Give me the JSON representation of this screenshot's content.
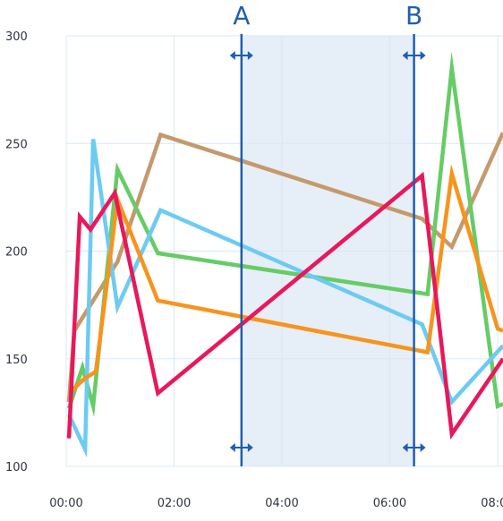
{
  "chart_data": {
    "type": "line",
    "xlim": [
      0,
      8.1
    ],
    "ylim": [
      100,
      300
    ],
    "x_ticks": [
      {
        "value": 0,
        "label": "00:00"
      },
      {
        "value": 2,
        "label": "02:00"
      },
      {
        "value": 4,
        "label": "04:00"
      },
      {
        "value": 6,
        "label": "06:00"
      },
      {
        "value": 8,
        "label": "08:00"
      }
    ],
    "y_ticks": [
      {
        "value": 100,
        "label": "100"
      },
      {
        "value": 150,
        "label": "150"
      },
      {
        "value": 200,
        "label": "200"
      },
      {
        "value": 250,
        "label": "250"
      },
      {
        "value": 300,
        "label": "300"
      }
    ],
    "grid": true,
    "cursors": [
      {
        "label": "A",
        "x": 3.25
      },
      {
        "label": "B",
        "x": 6.45
      }
    ],
    "selection_range": [
      3.25,
      6.45
    ],
    "series": [
      {
        "color": "#c49a6c",
        "points": [
          [
            0.05,
            130
          ],
          [
            0.15,
            163
          ],
          [
            0.95,
            195
          ],
          [
            1.75,
            254
          ],
          [
            6.6,
            215
          ],
          [
            7.15,
            202
          ],
          [
            8.1,
            255
          ]
        ]
      },
      {
        "color": "#66cc66",
        "points": [
          [
            0.05,
            127
          ],
          [
            0.3,
            146
          ],
          [
            0.5,
            128
          ],
          [
            0.95,
            238
          ],
          [
            1.7,
            199
          ],
          [
            6.7,
            180
          ],
          [
            7.15,
            285
          ],
          [
            8.0,
            128
          ],
          [
            8.1,
            129
          ]
        ]
      },
      {
        "color": "#6ccbf2",
        "points": [
          [
            0.05,
            124
          ],
          [
            0.35,
            108
          ],
          [
            0.5,
            252
          ],
          [
            0.95,
            174
          ],
          [
            1.75,
            219
          ],
          [
            6.6,
            166
          ],
          [
            7.15,
            130
          ],
          [
            8.1,
            156
          ]
        ]
      },
      {
        "color": "#f7941d",
        "points": [
          [
            0.05,
            134
          ],
          [
            0.35,
            141
          ],
          [
            0.55,
            144
          ],
          [
            0.95,
            224
          ],
          [
            1.7,
            177
          ],
          [
            6.7,
            153
          ],
          [
            7.15,
            236
          ],
          [
            8.0,
            164
          ],
          [
            8.1,
            163
          ]
        ]
      },
      {
        "color": "#e8185a",
        "points": [
          [
            0.05,
            113
          ],
          [
            0.25,
            216
          ],
          [
            0.45,
            210
          ],
          [
            0.9,
            227
          ],
          [
            1.7,
            134
          ],
          [
            6.6,
            235
          ],
          [
            7.15,
            115
          ],
          [
            8.1,
            150
          ]
        ]
      }
    ]
  }
}
